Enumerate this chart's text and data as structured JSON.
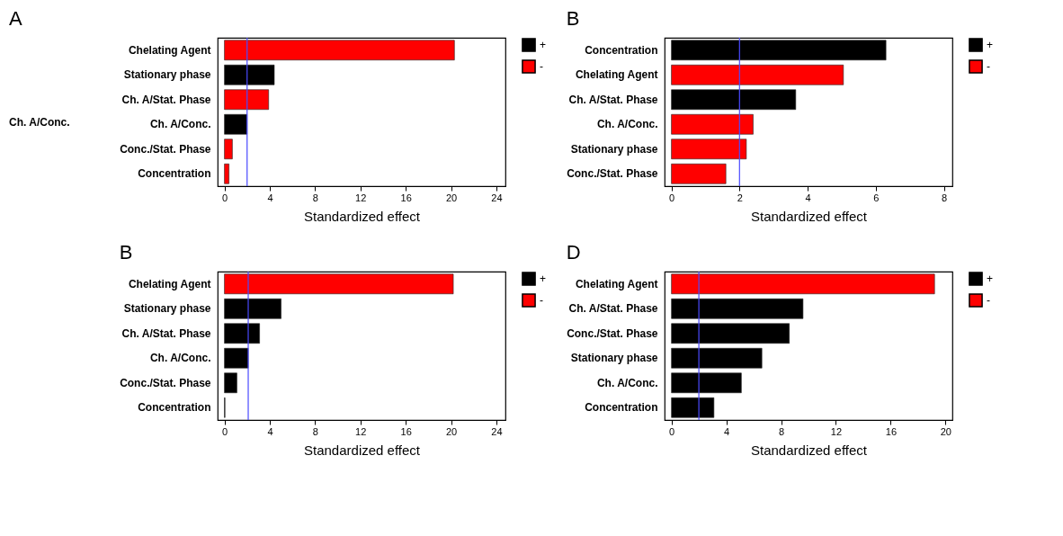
{
  "chart_data": [
    {
      "type": "bar",
      "orientation": "horizontal",
      "title": "A",
      "xlabel": "Standardized effect",
      "categories": [
        "Chelating Agent",
        "Stationary phase",
        "Ch. A/Stat. Phase",
        "Ch. A/Conc.",
        "Conc./Stat. Phase",
        "Concentration"
      ],
      "series": [
        {
          "name": "+",
          "color": "#000000",
          "values": [
            null,
            4.4,
            null,
            2.0,
            null,
            null
          ]
        },
        {
          "name": "-",
          "color": "#ff0000",
          "values": [
            20.3,
            null,
            3.9,
            null,
            0.7,
            0.4
          ]
        }
      ],
      "xlim": [
        -0.6,
        24.8
      ],
      "xticks": [
        0,
        4,
        8,
        12,
        16,
        20,
        24
      ],
      "ref_lines": [
        {
          "axis": "x",
          "value": 2.0,
          "color": "#4a4aff"
        }
      ],
      "legend": "top right",
      "annotations": [
        "Ch. A/Conc."
      ]
    },
    {
      "type": "bar",
      "orientation": "horizontal",
      "title": "B",
      "xlabel": "Standardized effect",
      "categories": [
        "Concentration",
        "Chelating Agent",
        "Ch. A/Stat. Phase",
        "Ch. A/Conc.",
        "Stationary phase",
        "Conc./Stat. Phase"
      ],
      "series": [
        {
          "name": "+",
          "color": "#000000",
          "values": [
            6.3,
            null,
            3.65,
            null,
            null,
            null
          ]
        },
        {
          "name": "-",
          "color": "#ff0000",
          "values": [
            null,
            5.05,
            null,
            2.4,
            2.2,
            1.6
          ]
        }
      ],
      "xlim": [
        -0.2,
        8.25
      ],
      "xticks": [
        0,
        2,
        4,
        6,
        8
      ],
      "ref_lines": [
        {
          "axis": "x",
          "value": 2.0,
          "color": "#4a4aff"
        }
      ],
      "legend": "top right"
    },
    {
      "type": "bar",
      "orientation": "horizontal",
      "title": "B",
      "xlabel": "Standardized effect",
      "categories": [
        "Chelating Agent",
        "Stationary phase",
        "Ch. A/Stat. Phase",
        "Ch. A/Conc.",
        "Conc./Stat. Phase",
        "Concentration"
      ],
      "series": [
        {
          "name": "+",
          "color": "#000000",
          "values": [
            null,
            5.0,
            3.1,
            2.1,
            1.1,
            0.05
          ]
        },
        {
          "name": "-",
          "color": "#ff0000",
          "values": [
            20.2,
            null,
            null,
            null,
            null,
            null
          ]
        }
      ],
      "xlim": [
        -0.6,
        24.8
      ],
      "xticks": [
        0,
        4,
        8,
        12,
        16,
        20,
        24
      ],
      "ref_lines": [
        {
          "axis": "x",
          "value": 2.1,
          "color": "#4a4aff"
        }
      ],
      "legend": "top right"
    },
    {
      "type": "bar",
      "orientation": "horizontal",
      "title": "D",
      "xlabel": "Standardized effect",
      "categories": [
        "Chelating Agent",
        "Ch. A/Stat. Phase",
        "Conc./Stat. Phase",
        "Stationary phase",
        "Ch. A/Conc.",
        "Concentration"
      ],
      "series": [
        {
          "name": "+",
          "color": "#000000",
          "values": [
            null,
            9.6,
            8.6,
            6.6,
            5.1,
            3.1
          ]
        },
        {
          "name": "-",
          "color": "#ff0000",
          "values": [
            19.2,
            null,
            null,
            null,
            null,
            null
          ]
        }
      ],
      "xlim": [
        -0.5,
        20.5
      ],
      "xticks": [
        0,
        4,
        8,
        12,
        16,
        20
      ],
      "ref_lines": [
        {
          "axis": "x",
          "value": 2.0,
          "color": "#4a4aff"
        }
      ],
      "legend": "top right"
    }
  ]
}
